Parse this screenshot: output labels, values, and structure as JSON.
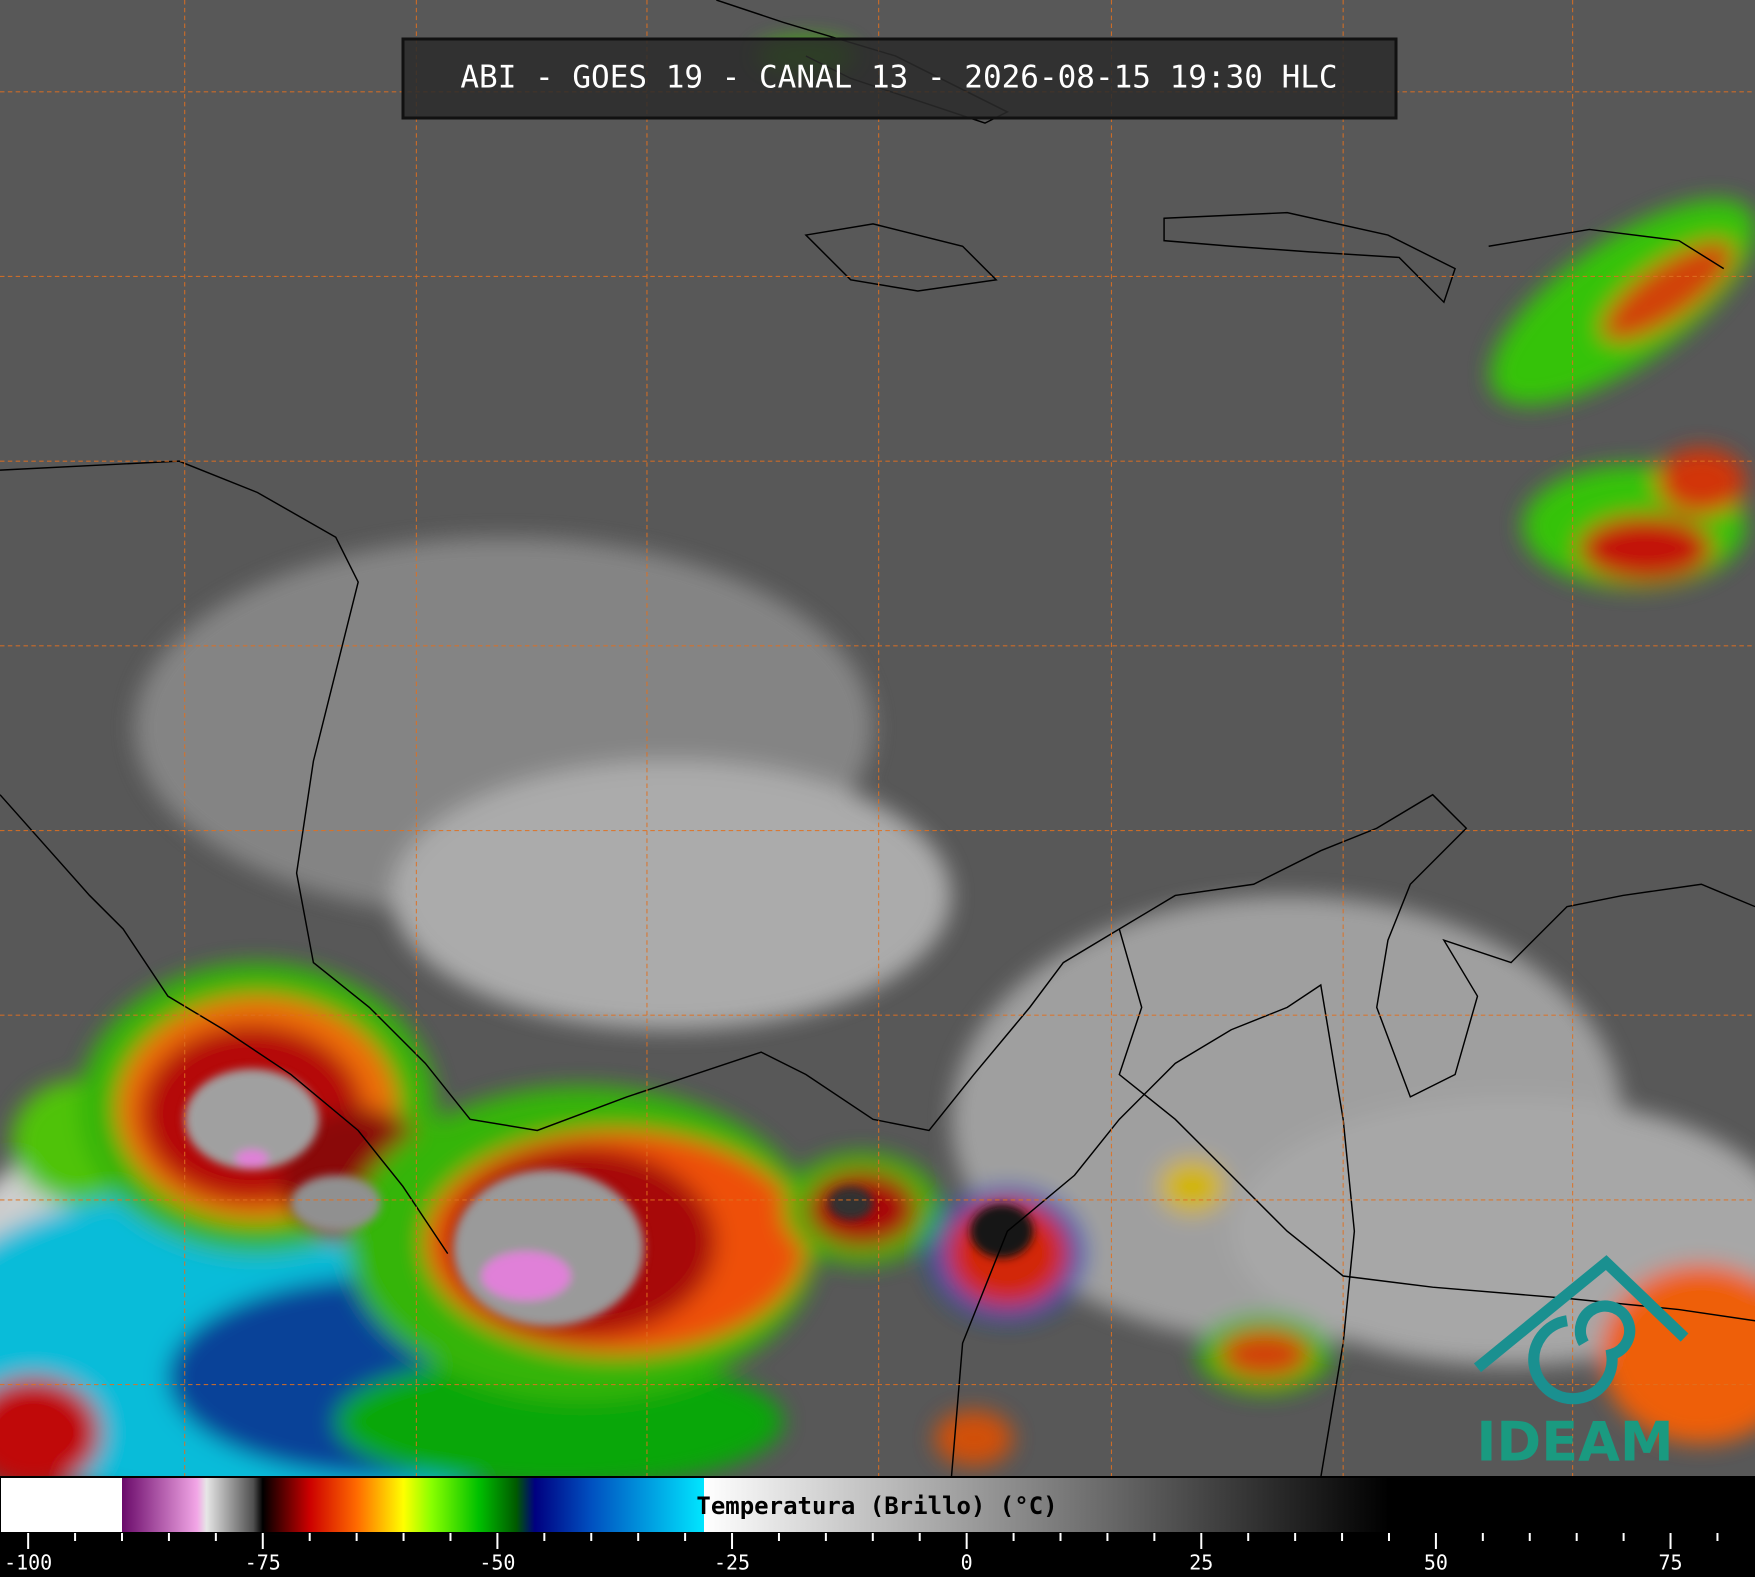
{
  "title": "ABI - GOES 19 - CANAL 13 - 2026-08-15 19:30 HLC",
  "logo": "IDEAM",
  "colorbar": {
    "label": "Temperatura (Brillo) (°C)",
    "xlim": [
      -103,
      84
    ],
    "xticks": [
      -100,
      -75,
      -50,
      -25,
      0,
      25,
      50,
      75
    ],
    "minor_xticks": [
      -95,
      -90,
      -85,
      -80,
      -70,
      -65,
      -60,
      -55,
      -45,
      -40,
      -35,
      -30,
      -20,
      -15,
      -10,
      -5,
      5,
      10,
      15,
      20,
      30,
      35,
      40,
      45,
      55,
      60,
      65,
      70,
      80
    ],
    "stops": [
      {
        "value": -103,
        "color": "#ffffff"
      },
      {
        "value": -90,
        "color": "#ffffff"
      },
      {
        "value": -90,
        "color": "#6a0a6a"
      },
      {
        "value": -82,
        "color": "#f2a6e6"
      },
      {
        "value": -81,
        "color": "#e6e6e6"
      },
      {
        "value": -76,
        "color": "#505050"
      },
      {
        "value": -75,
        "color": "#000000"
      },
      {
        "value": -74,
        "color": "#2a0000"
      },
      {
        "value": -70,
        "color": "#cc0000"
      },
      {
        "value": -65,
        "color": "#ff6a00"
      },
      {
        "value": -60,
        "color": "#ffff00"
      },
      {
        "value": -57,
        "color": "#88ff00"
      },
      {
        "value": -52,
        "color": "#00c000"
      },
      {
        "value": -48,
        "color": "#005a00"
      },
      {
        "value": -46,
        "color": "#000080"
      },
      {
        "value": -40,
        "color": "#0050c0"
      },
      {
        "value": -28,
        "color": "#00e6ff"
      },
      {
        "value": -28,
        "color": "#ffffff"
      },
      {
        "value": 45,
        "color": "#000000"
      },
      {
        "value": 84,
        "color": "#000000"
      }
    ]
  }
}
